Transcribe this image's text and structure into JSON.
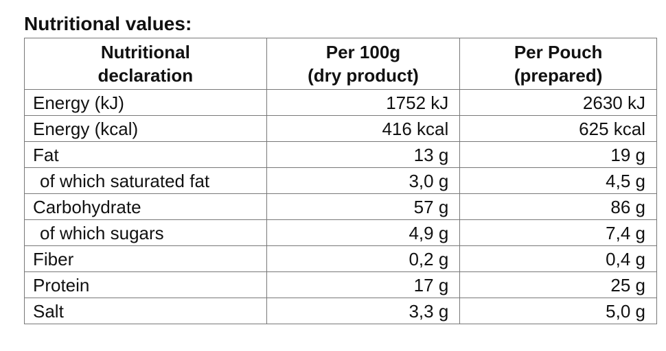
{
  "title": "Nutritional values:",
  "table": {
    "header": [
      "Nutritional\ndeclaration",
      "Per 100g\n(dry product)",
      "Per Pouch\n(prepared)"
    ],
    "rows": [
      [
        "Energy (kJ)",
        "1752 kJ",
        "2630 kJ"
      ],
      [
        "Energy (kcal)",
        "416 kcal",
        "625 kcal"
      ],
      [
        "Fat",
        "13 g",
        "19 g"
      ],
      [
        "of which saturated fat",
        "3,0 g",
        "4,5 g"
      ],
      [
        "Carbohydrate",
        "57 g",
        "86 g"
      ],
      [
        "of which sugars",
        "4,9 g",
        "7,4 g"
      ],
      [
        "Fiber",
        "0,2 g",
        "0,4 g"
      ],
      [
        "Protein",
        "17 g",
        "25 g"
      ],
      [
        "Salt",
        "3,3 g",
        "5,0 g"
      ]
    ]
  }
}
